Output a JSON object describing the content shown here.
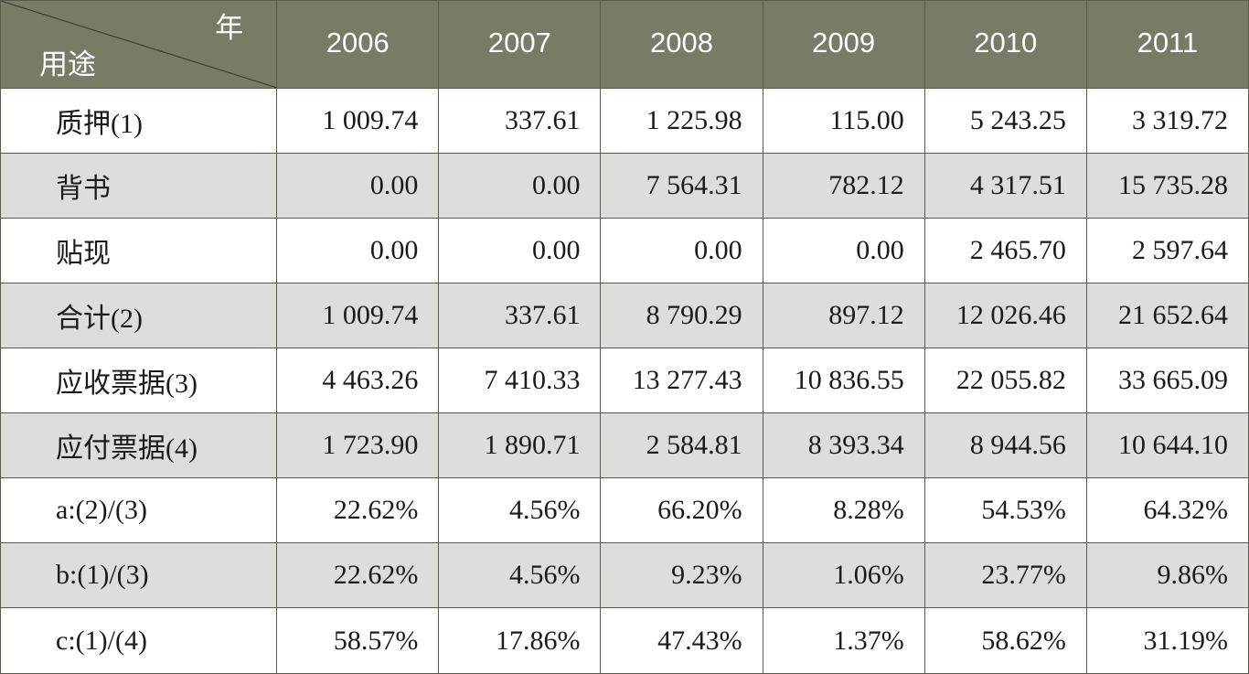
{
  "table": {
    "corner": {
      "column_header_label": "年",
      "row_header_label": "用途"
    },
    "years": [
      "2006",
      "2007",
      "2008",
      "2009",
      "2010",
      "2011"
    ],
    "rows": [
      {
        "label": "质押(1)",
        "values": [
          "1 009.74",
          "337.61",
          "1 225.98",
          "115.00",
          "5 243.25",
          "3 319.72"
        ]
      },
      {
        "label": "背书",
        "values": [
          "0.00",
          "0.00",
          "7 564.31",
          "782.12",
          "4 317.51",
          "15 735.28"
        ]
      },
      {
        "label": "贴现",
        "values": [
          "0.00",
          "0.00",
          "0.00",
          "0.00",
          "2 465.70",
          "2 597.64"
        ]
      },
      {
        "label": "合计(2)",
        "values": [
          "1 009.74",
          "337.61",
          "8 790.29",
          "897.12",
          "12 026.46",
          "21 652.64"
        ]
      },
      {
        "label": "应收票据(3)",
        "values": [
          "4 463.26",
          "7 410.33",
          "13 277.43",
          "10 836.55",
          "22 055.82",
          "33 665.09"
        ]
      },
      {
        "label": "应付票据(4)",
        "values": [
          "1 723.90",
          "1 890.71",
          "2 584.81",
          "8 393.34",
          "8 944.56",
          "10 644.10"
        ]
      },
      {
        "label": "a:(2)/(3)",
        "values": [
          "22.62%",
          "4.56%",
          "66.20%",
          "8.28%",
          "54.53%",
          "64.32%"
        ]
      },
      {
        "label": "b:(1)/(3)",
        "values": [
          "22.62%",
          "4.56%",
          "9.23%",
          "1.06%",
          "23.77%",
          "9.86%"
        ]
      },
      {
        "label": "c:(1)/(4)",
        "values": [
          "58.57%",
          "17.86%",
          "47.43%",
          "1.37%",
          "58.62%",
          "31.19%"
        ]
      }
    ]
  },
  "colors": {
    "header_background": "#7a7a66",
    "header_text": "#ffffff",
    "stripe_background": "#dedddb",
    "row_background": "#ffffff",
    "border": "#5a5a4c"
  }
}
